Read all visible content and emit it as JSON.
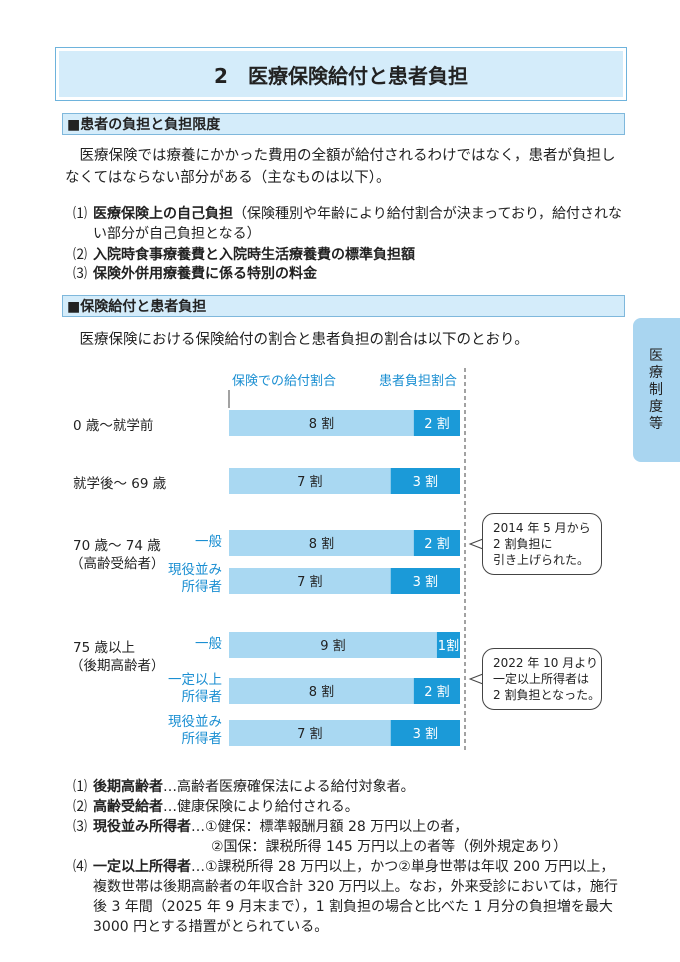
{
  "header": {
    "title": "2　医療保険給付と患者負担"
  },
  "sections": [
    {
      "heading": "■患者の負担と負担限度",
      "paragraph": "医療保険では療養にかかった費用の全額が給付されるわけではなく，患者が負担しなくてはならない部分がある（主なものは以下）。",
      "items": [
        {
          "marker": "⑴",
          "term": "医療保険上の自己負担",
          "text": "（保険種別や年齢により給付割合が決まっており，給付されない部分が自己負担となる）"
        },
        {
          "marker": "⑵",
          "term": "入院時食事療養費と入院時生活療養費の標準負担額"
        },
        {
          "marker": "⑶",
          "term": "保険外併用療養費に係る特別の料金"
        }
      ]
    },
    {
      "heading": "■保険給付と患者負担",
      "paragraph": "医療保険における保険給付の割合と患者負担の割合は以下のとおり。"
    }
  ],
  "side_tab": "医療制度等",
  "chart_data": {
    "type": "stacked-bar",
    "groups": [
      {
        "label": "0 歳〜就学前"
      },
      {
        "label": "就学後〜 69 歳"
      },
      {
        "label": "70 歳〜 74 歳",
        "note": "（高齢受給者）"
      },
      {
        "label": "75 歳以上",
        "note": "（後期高齢者）"
      }
    ],
    "categories": [
      null,
      null,
      "一般",
      "現役並み所得者",
      "一般",
      "一定以上所得者",
      "現役並み所得者"
    ],
    "series": [
      {
        "name": "保険での給付割合",
        "color": "#a9d8f2",
        "values": [
          8,
          7,
          8,
          7,
          9,
          8,
          7
        ],
        "value_labels": [
          "8 割",
          "7 割",
          "8 割",
          "7 割",
          "9 割",
          "8 割",
          "7 割"
        ]
      },
      {
        "name": "患者負担割合",
        "color": "#1b9ad8",
        "values": [
          2,
          3,
          2,
          3,
          1,
          2,
          3
        ],
        "value_labels": [
          "2 割",
          "3 割",
          "2 割",
          "3 割",
          "1割",
          "2 割",
          "3 割"
        ]
      }
    ],
    "annotations": [
      [
        "2014 年 5 月から",
        "2 割負担に",
        "引き上げられた。"
      ],
      [
        "2022 年 10 月より",
        "一定以上所得者は",
        "2 割負担となった。"
      ]
    ]
  },
  "footnotes": [
    {
      "marker": "⑴",
      "term": "後期高齢者",
      "text": [
        "…高齢者医療確保法による給付対象者。"
      ]
    },
    {
      "marker": "⑵",
      "term": "高齢受給者",
      "text": [
        "…健康保険により給付される。"
      ]
    },
    {
      "marker": "⑶",
      "term": "現役並み所得者",
      "text": [
        "…①健保：標準報酬月額 28 万円以上の者，",
        "②国保：課税所得 145 万円以上の者等（例外規定あり）"
      ]
    },
    {
      "marker": "⑷",
      "term": "一定以上所得者",
      "text": [
        "…①課税所得 28 万円以上，かつ②単身世帯は年収 200 万円以上，複数世帯は後期高齢者の年収合計 320 万円以上。なお，外来受診においては，施行後 3 年間（2025 年 9 月末まで），1 割負担の場合と比べた 1 月分の負担増を最大 3000 円とする措置がとられている。"
      ]
    }
  ]
}
